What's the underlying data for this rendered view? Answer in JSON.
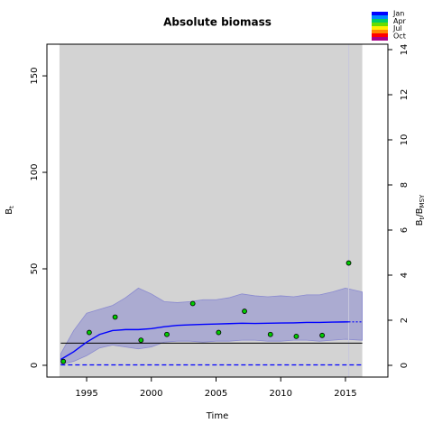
{
  "chart_data": {
    "type": "biomass",
    "title": "Absolute biomass",
    "xlabel": "Time",
    "ylabel": {
      "main": "B",
      "sub": "t"
    },
    "y2label": {
      "main": "B",
      "sub": "t",
      "slash": "/B",
      "sub2": "MSY"
    },
    "xlim": [
      1991.93,
      2018.28
    ],
    "xticks": [
      1995,
      2000,
      2005,
      2010,
      2015
    ],
    "ylim": [
      -6.1,
      166.4
    ],
    "yticks": [
      0,
      50,
      100,
      150
    ],
    "y2lim": [
      -0.52,
      14.24
    ],
    "y2ticks": [
      0,
      2,
      4,
      6,
      8,
      10,
      12,
      14
    ],
    "shade": [
      1992.9,
      2016.3
    ],
    "vline": 2015.25,
    "ci": {
      "color": "#8a8ad0",
      "x": [
        1993,
        1994,
        1995,
        1996,
        1997,
        1998,
        1999,
        2000,
        2001,
        2002,
        2003,
        2004,
        2005,
        2006,
        2007,
        2008,
        2009,
        2010,
        2011,
        2012,
        2013,
        2014,
        2015,
        2016.3
      ],
      "upper": [
        6,
        18,
        27,
        29,
        31,
        35,
        40,
        37,
        33,
        32.5,
        33,
        34,
        34,
        35,
        37,
        36,
        35.5,
        36,
        35.5,
        36.5,
        36.5,
        38,
        40,
        38
      ],
      "lower": [
        0.5,
        2,
        5,
        9,
        10.5,
        9.5,
        8.5,
        9.5,
        12,
        12.5,
        12.5,
        12,
        12.5,
        12.5,
        13,
        13,
        12.5,
        12.5,
        13,
        13,
        12.5,
        13,
        13.5,
        13
      ]
    },
    "estimate": {
      "color": "#0000ff",
      "x": [
        1993,
        1994,
        1995,
        1996,
        1997,
        1998,
        1999,
        2000,
        2001,
        2002,
        2003,
        2004,
        2005,
        2006,
        2007,
        2008,
        2009,
        2010,
        2011,
        2012,
        2013,
        2014,
        2015.25
      ],
      "values": [
        3,
        7,
        12,
        16,
        18,
        18.5,
        18.5,
        19,
        20,
        20.7,
        21,
        21.2,
        21.4,
        21.6,
        21.8,
        21.7,
        21.8,
        21.9,
        22,
        22.2,
        22.2,
        22.4,
        22.5
      ]
    },
    "forecast": {
      "color": "#0000ff",
      "x": [
        2015.25,
        2016.3
      ],
      "values": [
        22.5,
        22.5
      ]
    },
    "bmsy": {
      "color": "#000000",
      "x": [
        1993,
        2016.3
      ],
      "values": [
        11.5,
        11.5
      ]
    },
    "baseline": {
      "color": "#0000ff",
      "x": [
        1993,
        2016.3
      ],
      "values": [
        0.2,
        0.2
      ]
    },
    "observations": {
      "color": "#00cc00",
      "x": [
        1993.2,
        1995.2,
        1997.2,
        1999.2,
        2001.2,
        2003.2,
        2005.2,
        2007.2,
        2009.2,
        2011.2,
        2013.2,
        2015.25
      ],
      "values": [
        2,
        17,
        25,
        13,
        16,
        32,
        17,
        28,
        16,
        15,
        15.5,
        53
      ]
    },
    "month_legend": [
      "Jan",
      "Apr",
      "Jul",
      "Oct"
    ]
  }
}
